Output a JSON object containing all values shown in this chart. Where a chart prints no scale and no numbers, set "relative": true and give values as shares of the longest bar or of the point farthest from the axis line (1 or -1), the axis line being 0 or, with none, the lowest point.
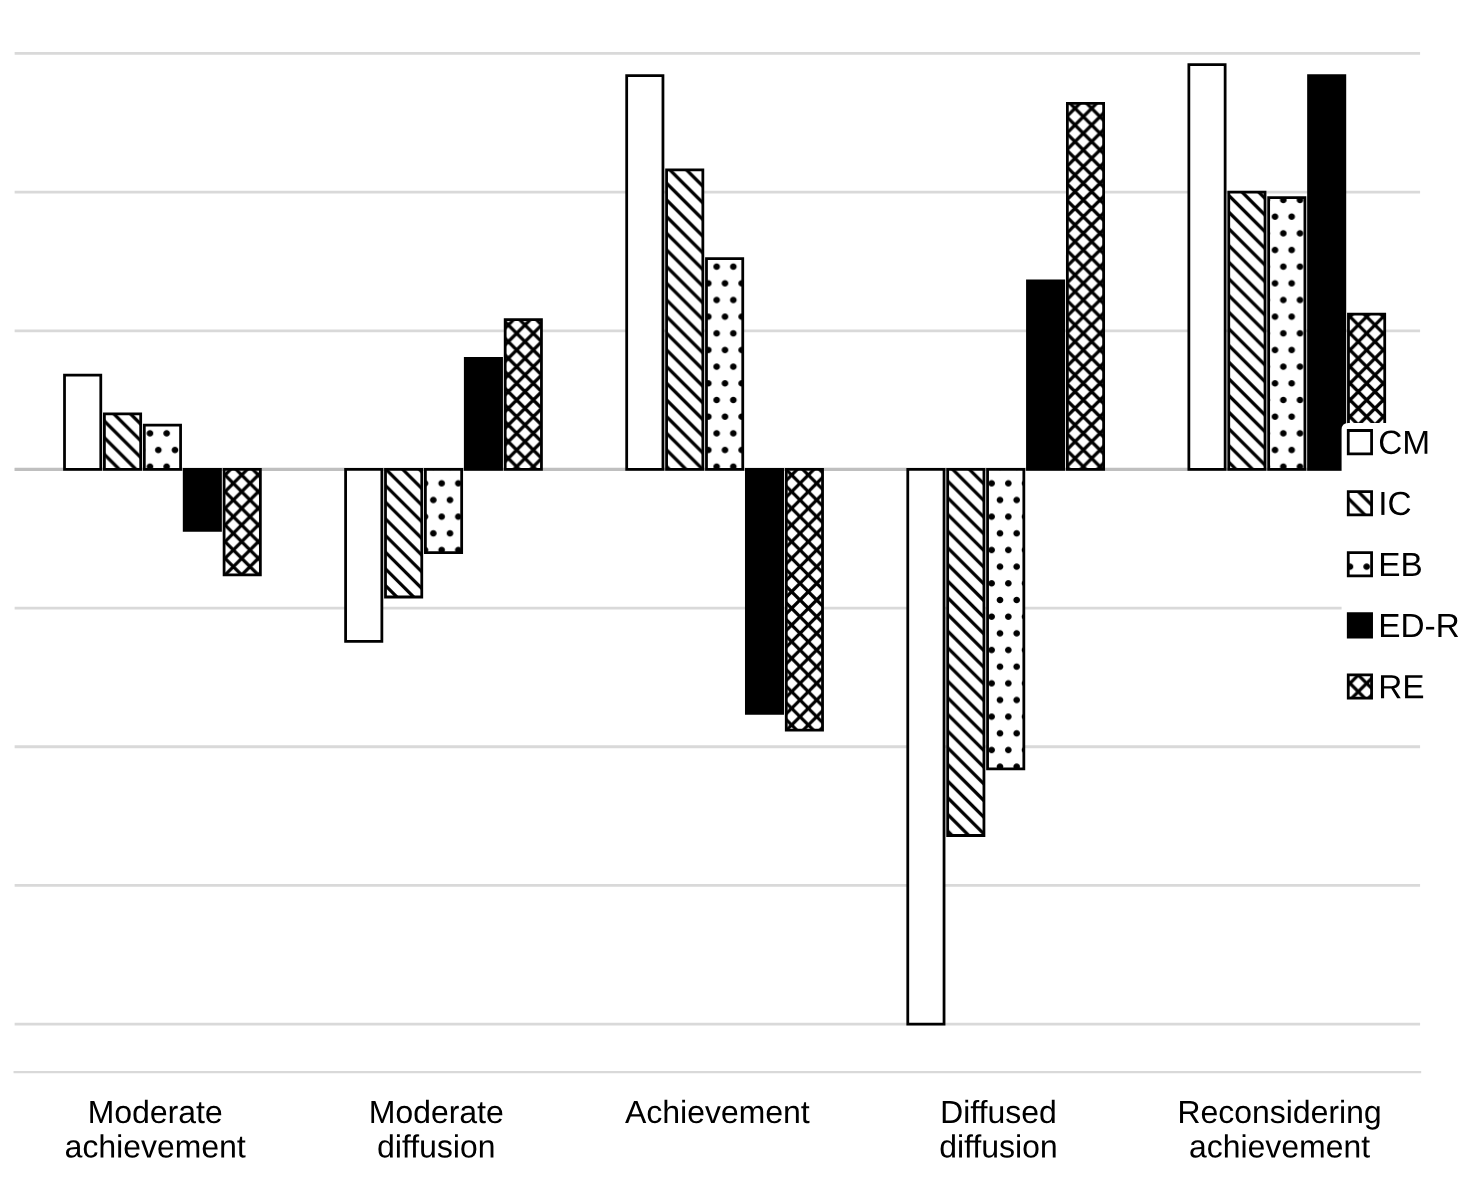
{
  "chart_data": {
    "type": "bar",
    "relative": true,
    "grid": "y",
    "legend": "right",
    "categories": [
      "Moderate\nachievement",
      "Moderate\ndiffusion",
      "Achievement",
      "Diffused\ndiffusion",
      "Reconsidering\nachievement"
    ],
    "series": [
      {
        "name": "CM",
        "color": "#ffffff",
        "values": [
          0.17,
          -0.31,
          0.71,
          -1,
          0.73
        ]
      },
      {
        "name": "IC",
        "color": "#000000",
        "values": [
          0.1,
          -0.23,
          0.54,
          -0.66,
          0.5
        ]
      },
      {
        "name": "EB",
        "color": "#000000",
        "values": [
          0.08,
          -0.15,
          0.38,
          -0.54,
          0.49
        ]
      },
      {
        "name": "ED-R",
        "color": "#000000",
        "values": [
          -0.11,
          0.2,
          -0.44,
          0.34,
          0.71
        ]
      },
      {
        "name": "RE",
        "color": "#000000",
        "values": [
          -0.19,
          0.27,
          -0.47,
          0.66,
          0.28
        ]
      }
    ]
  }
}
